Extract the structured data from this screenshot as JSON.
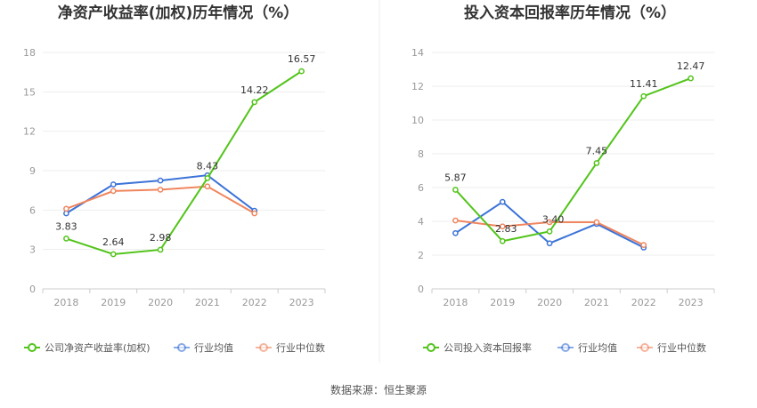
{
  "footer": {
    "source": "数据来源：恒生聚源"
  },
  "chart_data": [
    {
      "type": "line",
      "title": "净资产收益率(加权)历年情况（%）",
      "categories": [
        "2018",
        "2019",
        "2020",
        "2021",
        "2022",
        "2023"
      ],
      "ylim": [
        0,
        18
      ],
      "yticks": [
        0,
        3,
        6,
        9,
        12,
        15,
        18
      ],
      "grid": true,
      "legend_position": "bottom-left",
      "series": [
        {
          "name": "公司净资产收益率(加权)",
          "color": "#52c41a",
          "values": [
            3.83,
            2.64,
            2.98,
            8.43,
            14.22,
            16.57
          ],
          "labels": [
            "3.83",
            "2.64",
            "2.98",
            "8.43",
            "14.22",
            "16.57"
          ]
        },
        {
          "name": "行业均值",
          "color": "#3b73d8",
          "values": [
            5.75,
            7.95,
            8.25,
            8.65,
            5.95,
            null
          ]
        },
        {
          "name": "行业中位数",
          "color": "#f0855e",
          "values": [
            6.1,
            7.45,
            7.55,
            7.8,
            5.75,
            null
          ]
        }
      ]
    },
    {
      "type": "line",
      "title": "投入资本回报率历年情况（%）",
      "categories": [
        "2018",
        "2019",
        "2020",
        "2021",
        "2022",
        "2023"
      ],
      "ylim": [
        0,
        14
      ],
      "yticks": [
        0,
        2,
        4,
        6,
        8,
        10,
        12,
        14
      ],
      "grid": true,
      "legend_position": "bottom-left",
      "series": [
        {
          "name": "公司投入资本回报率",
          "color": "#52c41a",
          "values": [
            5.87,
            2.83,
            3.4,
            7.45,
            11.41,
            12.47
          ],
          "labels": [
            "5.87",
            "2.83",
            "3.40",
            "7.45",
            "11.41",
            "12.47"
          ]
        },
        {
          "name": "行业均值",
          "color": "#3b73d8",
          "values": [
            3.3,
            5.15,
            2.7,
            3.85,
            2.45,
            null
          ]
        },
        {
          "name": "行业中位数",
          "color": "#f0855e",
          "values": [
            4.05,
            3.7,
            3.95,
            3.95,
            2.6,
            null
          ]
        }
      ]
    }
  ]
}
